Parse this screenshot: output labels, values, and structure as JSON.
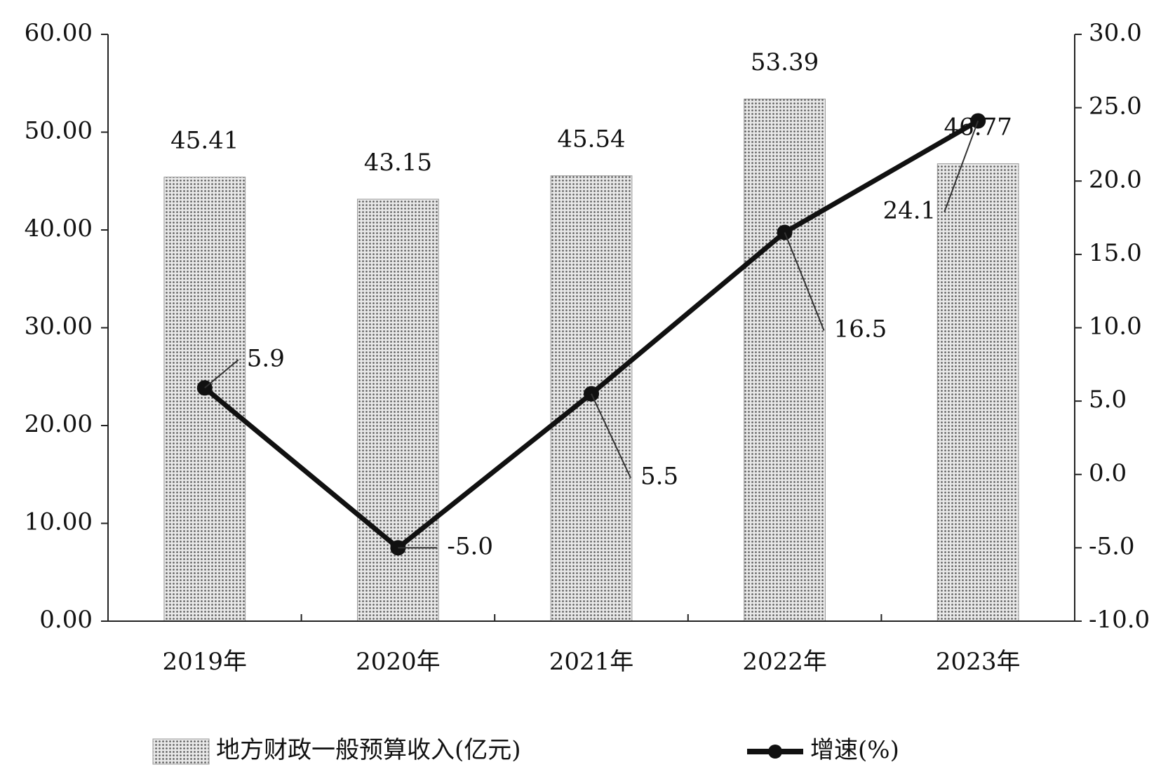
{
  "chart_data": {
    "type": "bar",
    "categories": [
      "2019年",
      "2020年",
      "2021年",
      "2022年",
      "2023年"
    ],
    "series": [
      {
        "name": "地方财政一般预算收入(亿元)",
        "type": "bar",
        "color": "#888888",
        "values": [
          45.41,
          43.15,
          45.54,
          53.39,
          46.77
        ]
      },
      {
        "name": "增速(%)",
        "type": "line",
        "axis": "y2",
        "color": "#111111",
        "values": [
          5.9,
          -5.0,
          5.5,
          16.5,
          24.1
        ],
        "value_labels": [
          "5.9",
          "-5.0",
          "5.5",
          "16.5",
          "24.1"
        ]
      }
    ],
    "ylim": [
      0,
      60
    ],
    "yticks": [
      {
        "value": 0,
        "label": "0.00"
      },
      {
        "value": 10,
        "label": "10.00"
      },
      {
        "value": 20,
        "label": "20.00"
      },
      {
        "value": 30,
        "label": "30.00"
      },
      {
        "value": 40,
        "label": "40.00"
      },
      {
        "value": 50,
        "label": "50.00"
      },
      {
        "value": 60,
        "label": "60.00"
      }
    ],
    "y2lim": [
      -10,
      30
    ],
    "y2ticks": [
      {
        "value": -10,
        "label": "-10.0"
      },
      {
        "value": -5,
        "label": "-5.0"
      },
      {
        "value": 0,
        "label": "0.0"
      },
      {
        "value": 5,
        "label": "5.0"
      },
      {
        "value": 10,
        "label": "10.0"
      },
      {
        "value": 15,
        "label": "15.0"
      },
      {
        "value": 20,
        "label": "20.0"
      },
      {
        "value": 25,
        "label": "25.0"
      },
      {
        "value": 30,
        "label": "30.0"
      }
    ],
    "grid": false,
    "legend": "bottom"
  }
}
